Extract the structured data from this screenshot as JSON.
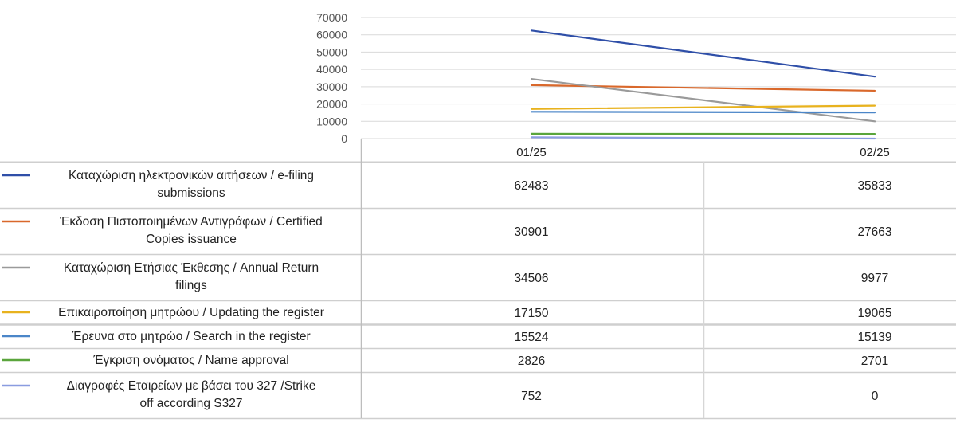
{
  "chart_data": {
    "type": "line",
    "title": "",
    "xlabel": "",
    "ylabel": "",
    "categories": [
      "01/25",
      "02/25"
    ],
    "ylim": [
      0,
      70000
    ],
    "yticks": [
      "70000",
      "60000",
      "50000",
      "40000",
      "30000",
      "20000",
      "10000",
      "0"
    ],
    "grid": true,
    "legend": "data-table-left",
    "series": [
      {
        "name": "Καταχώριση ηλεκτρονικών αιτήσεων / e-filing submissions",
        "line1": "Καταχώριση ηλεκτρονικών αιτήσεων / e-filing",
        "line2": "submissions",
        "values": [
          62483,
          35833
        ],
        "labels": [
          "62483",
          "35833"
        ],
        "color": "#2f4fa8"
      },
      {
        "name": "Έκδοση Πιστοποιημένων Αντιγράφων / Certified Copies issuance",
        "line1": "Έκδοση Πιστοποιημένων Αντιγράφων / Certified",
        "line2": "Copies issuance",
        "values": [
          30901,
          27663
        ],
        "labels": [
          "30901",
          "27663"
        ],
        "color": "#d9682b"
      },
      {
        "name": "Καταχώριση Ετήσιας Έκθεσης / Annual Return filings",
        "line1": "Καταχώριση Ετήσιας Έκθεσης / Annual Return",
        "line2": "filings",
        "values": [
          34506,
          9977
        ],
        "labels": [
          "34506",
          "9977"
        ],
        "color": "#9a9a9a"
      },
      {
        "name": "Επικαιροποίηση μητρώου / Updating the register",
        "line1": "Επικαιροποίηση μητρώου / Updating the register",
        "line2": "",
        "values": [
          17150,
          19065
        ],
        "labels": [
          "17150",
          "19065"
        ],
        "color": "#e8b21e"
      },
      {
        "name": "Έρευνα στο μητρώο / Search in the register",
        "line1": "Έρευνα στο μητρώο / Search in the register",
        "line2": "",
        "values": [
          15524,
          15139
        ],
        "labels": [
          "15524",
          "15139"
        ],
        "color": "#4b86c8"
      },
      {
        "name": "Έγκριση ονόματος / Name approval",
        "line1": "Έγκριση ονόματος / Name approval",
        "line2": "",
        "values": [
          2826,
          2701
        ],
        "labels": [
          "2826",
          "2701"
        ],
        "color": "#5aa53c"
      },
      {
        "name": "Διαγραφές Εταιρείων με βάσει του 327 /Strike off according S327",
        "line1": "Διαγραφές Εταιρείων με  βάσει του 327 /Strike",
        "line2": "off according S327",
        "values": [
          752,
          0
        ],
        "labels": [
          "752",
          "0"
        ],
        "color": "#8a9ce0"
      }
    ]
  }
}
